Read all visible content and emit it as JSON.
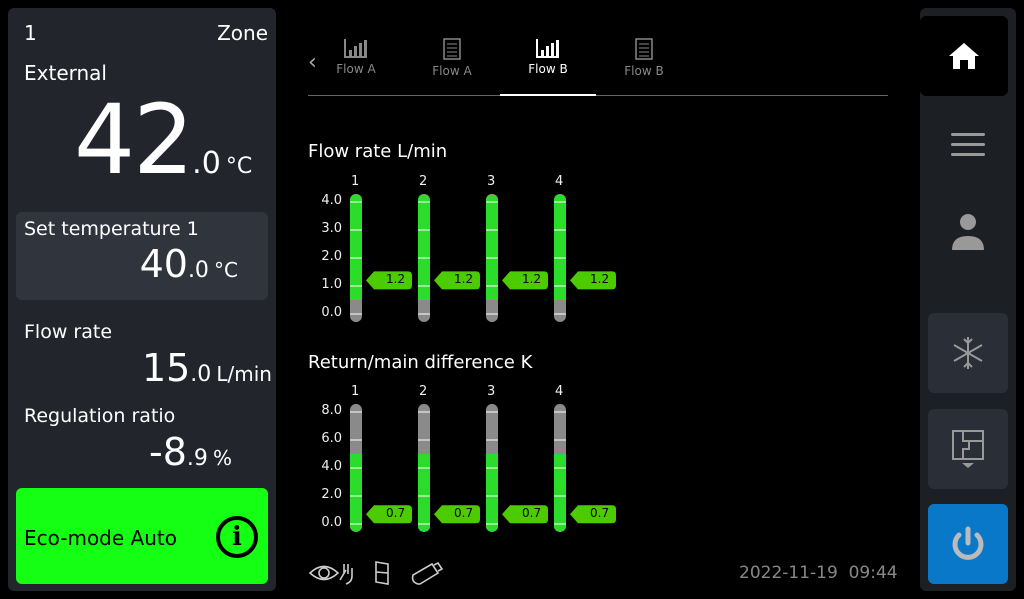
{
  "zone": {
    "number": "1",
    "label": "Zone"
  },
  "external": {
    "label": "External",
    "int": "42",
    "dec": ".0",
    "unit": "°C"
  },
  "set_temperature": {
    "label": "Set temperature 1",
    "int": "40",
    "dec": ".0",
    "unit": "°C"
  },
  "flow_rate": {
    "label": "Flow rate",
    "int": "15",
    "dec": ".0",
    "unit": "L/min"
  },
  "regulation_ratio": {
    "label": "Regulation ratio",
    "int": "-8",
    "dec": ".9",
    "unit": "%"
  },
  "eco": {
    "label": "Eco-mode Auto",
    "info_icon": "info-icon",
    "color": "#14ff14"
  },
  "tabs": [
    {
      "label": "Flow A",
      "icon": "bar-chart-icon"
    },
    {
      "label": "Flow A",
      "icon": "document-icon"
    },
    {
      "label": "Flow B",
      "icon": "bar-chart-icon",
      "active": true
    },
    {
      "label": "Flow B",
      "icon": "document-icon"
    }
  ],
  "footer": {
    "date": "2022-11-19",
    "time": "09:44",
    "icons": [
      "eye-hand-icon",
      "door-icon",
      "usb-stick-icon"
    ]
  },
  "rail": [
    "home-icon",
    "menu-icon",
    "user-icon",
    "snowflake-icon",
    "floorplan-icon",
    "power-icon"
  ],
  "chart_data": [
    {
      "type": "bar",
      "title": "Flow rate L/min",
      "categories": [
        "1",
        "2",
        "3",
        "4"
      ],
      "values": [
        1.2,
        1.2,
        1.2,
        1.2
      ],
      "value_labels": [
        "1.2",
        "1.2",
        "1.2",
        "1.2"
      ],
      "ticks": [
        "0.0",
        "1.0",
        "2.0",
        "3.0",
        "4.0"
      ],
      "ylim": [
        0,
        4
      ],
      "green_range": [
        0.5,
        4.25
      ],
      "colors": {
        "ok": "#2bdc2b",
        "out": "#8a8a8a",
        "marker": "#4ccc00"
      }
    },
    {
      "type": "bar",
      "title": "Return/main difference K",
      "categories": [
        "1",
        "2",
        "3",
        "4"
      ],
      "values": [
        0.7,
        0.7,
        0.7,
        0.7
      ],
      "value_labels": [
        "0.7",
        "0.7",
        "0.7",
        "0.7"
      ],
      "ticks": [
        "0.0",
        "2.0",
        "4.0",
        "6.0",
        "8.0"
      ],
      "ylim": [
        0,
        8
      ],
      "green_range": [
        -0.5,
        5.0
      ],
      "colors": {
        "ok": "#2bdc2b",
        "out": "#8a8a8a",
        "marker": "#4ccc00"
      }
    }
  ]
}
